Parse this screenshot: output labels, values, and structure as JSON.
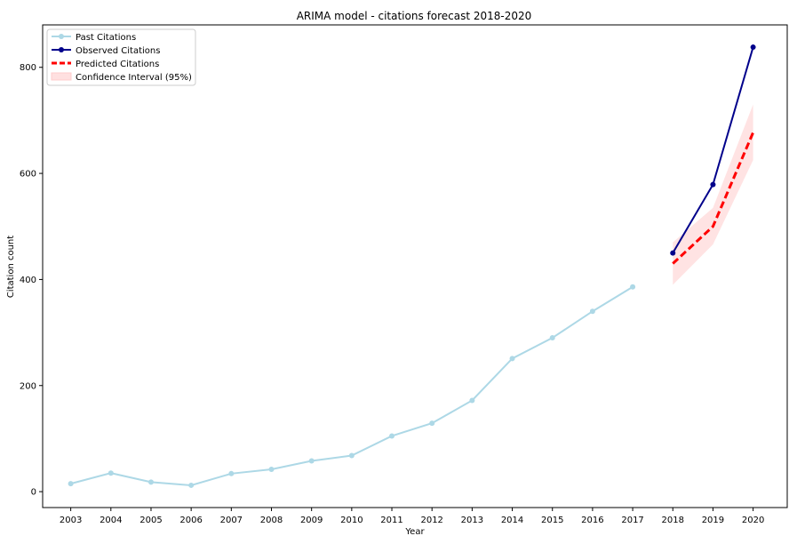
{
  "chart_data": {
    "type": "line",
    "title": "ARIMA model - citations forecast 2018-2020",
    "xlabel": "Year",
    "ylabel": "Citation count",
    "x_ticks": [
      "2003",
      "2004",
      "2005",
      "2006",
      "2007",
      "2008",
      "2009",
      "2010",
      "2011",
      "2012",
      "2013",
      "2014",
      "2015",
      "2016",
      "2017",
      "2018",
      "2019",
      "2020"
    ],
    "y_ticks": [
      0,
      200,
      400,
      600,
      800
    ],
    "ylim": [
      -30,
      880
    ],
    "xlim": [
      2002.3,
      2020.85
    ],
    "legend_position": "top-left",
    "series": [
      {
        "name": "Past Citations",
        "color": "#add8e6",
        "x": [
          2003,
          2004,
          2005,
          2006,
          2007,
          2008,
          2009,
          2010,
          2011,
          2012,
          2013,
          2014,
          2015,
          2016,
          2017
        ],
        "y": [
          15,
          35,
          18,
          12,
          34,
          42,
          58,
          68,
          105,
          129,
          172,
          251,
          290,
          340,
          386
        ]
      },
      {
        "name": "Observed Citations",
        "color": "#00008b",
        "x": [
          2018,
          2019,
          2020
        ],
        "y": [
          450,
          579,
          838
        ]
      },
      {
        "name": "Predicted Citations",
        "color": "#ff0000",
        "x": [
          2018,
          2019,
          2020
        ],
        "y": [
          430,
          500,
          677
        ]
      }
    ],
    "confidence_interval": {
      "name": "Confidence Interval (95%)",
      "color": "#ffcccc",
      "x": [
        2018,
        2019,
        2020
      ],
      "lower": [
        390,
        466,
        625
      ],
      "upper": [
        470,
        535,
        730
      ]
    }
  }
}
